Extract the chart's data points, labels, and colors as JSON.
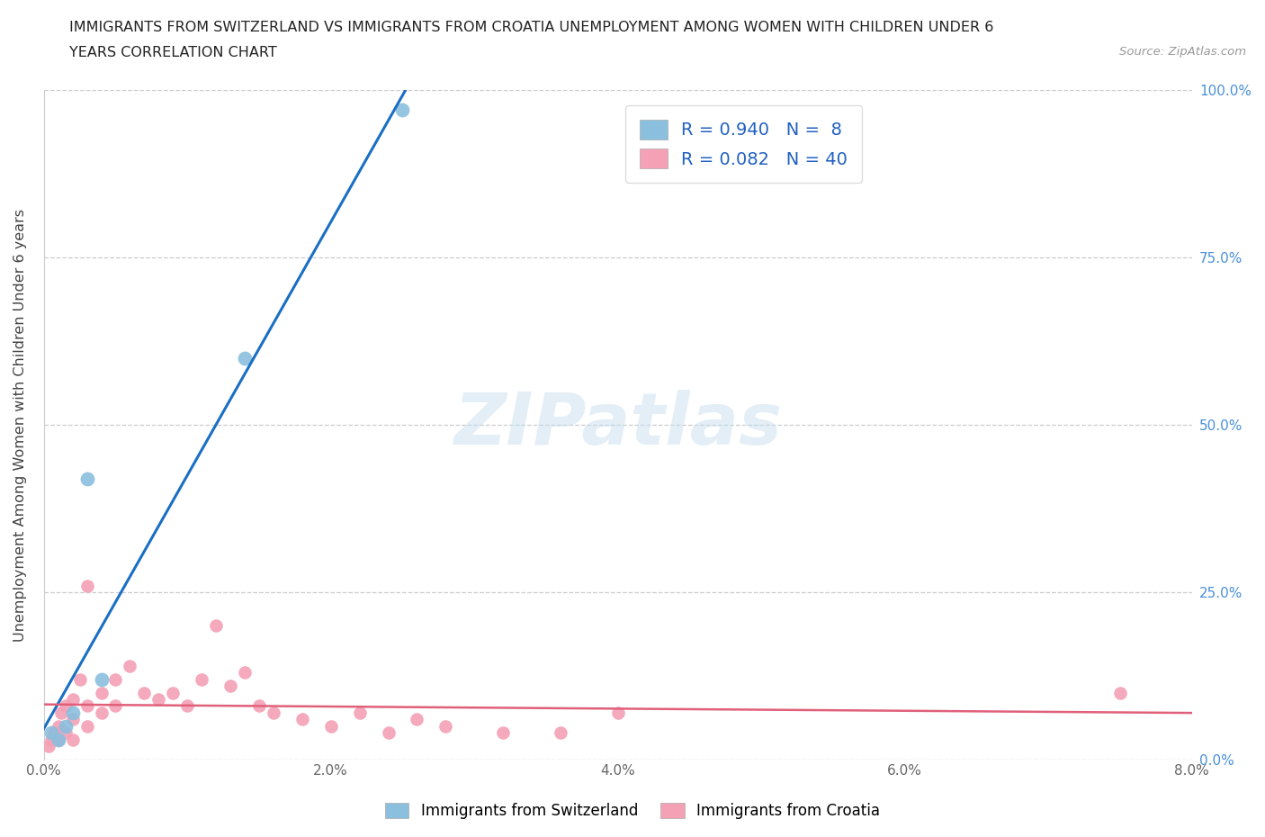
{
  "title_line1": "IMMIGRANTS FROM SWITZERLAND VS IMMIGRANTS FROM CROATIA UNEMPLOYMENT AMONG WOMEN WITH CHILDREN UNDER 6",
  "title_line2": "YEARS CORRELATION CHART",
  "source": "Source: ZipAtlas.com",
  "ylabel": "Unemployment Among Women with Children Under 6 years",
  "xlim": [
    0.0,
    0.08
  ],
  "ylim": [
    0.0,
    1.0
  ],
  "xticks": [
    0.0,
    0.02,
    0.04,
    0.06,
    0.08
  ],
  "xtick_labels": [
    "0.0%",
    "2.0%",
    "4.0%",
    "6.0%",
    "8.0%"
  ],
  "yticks": [
    0.0,
    0.25,
    0.5,
    0.75,
    1.0
  ],
  "right_ytick_labels": [
    "0.0%",
    "25.0%",
    "50.0%",
    "75.0%",
    "100.0%"
  ],
  "switzerland_color": "#8abfde",
  "croatia_color": "#f4a0b5",
  "switzerland_line_color": "#1a6fc4",
  "croatia_line_color": "#e0607a",
  "switzerland_R": 0.94,
  "switzerland_N": 8,
  "croatia_R": 0.082,
  "croatia_N": 40,
  "watermark": "ZIPatlas",
  "background_color": "#ffffff",
  "grid_color": "#cccccc",
  "right_axis_color": "#4a90d9",
  "switzerland_x": [
    0.0005,
    0.001,
    0.0015,
    0.002,
    0.003,
    0.004,
    0.014,
    0.025
  ],
  "switzerland_y": [
    0.04,
    0.03,
    0.05,
    0.07,
    0.42,
    0.12,
    0.6,
    0.97
  ],
  "croatia_x": [
    0.0003,
    0.0005,
    0.0007,
    0.001,
    0.001,
    0.0012,
    0.0015,
    0.0015,
    0.002,
    0.002,
    0.002,
    0.0025,
    0.003,
    0.003,
    0.003,
    0.004,
    0.004,
    0.005,
    0.005,
    0.006,
    0.007,
    0.008,
    0.009,
    0.01,
    0.011,
    0.012,
    0.013,
    0.014,
    0.015,
    0.016,
    0.018,
    0.02,
    0.022,
    0.024,
    0.026,
    0.028,
    0.032,
    0.036,
    0.04,
    0.075
  ],
  "croatia_y": [
    0.02,
    0.03,
    0.04,
    0.03,
    0.05,
    0.07,
    0.04,
    0.08,
    0.03,
    0.06,
    0.09,
    0.12,
    0.05,
    0.08,
    0.26,
    0.07,
    0.1,
    0.08,
    0.12,
    0.14,
    0.1,
    0.09,
    0.1,
    0.08,
    0.12,
    0.2,
    0.11,
    0.13,
    0.08,
    0.07,
    0.06,
    0.05,
    0.07,
    0.04,
    0.06,
    0.05,
    0.04,
    0.04,
    0.07,
    0.1
  ]
}
